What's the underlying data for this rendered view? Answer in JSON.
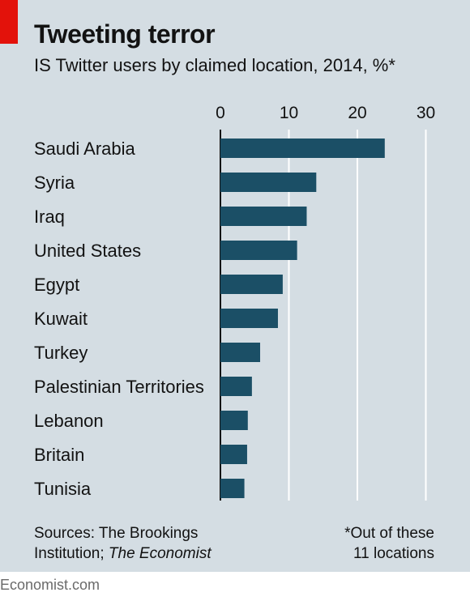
{
  "header": {
    "title": "Tweeting terror",
    "subtitle": "IS Twitter users by claimed location, 2014, %*"
  },
  "chart_data": {
    "type": "bar",
    "orientation": "horizontal",
    "title": "Tweeting terror",
    "subtitle": "IS Twitter users by claimed location, 2014, %*",
    "xlabel": "",
    "ylabel": "",
    "xlim": [
      0,
      30
    ],
    "ticks": [
      "0",
      "10",
      "20",
      "30"
    ],
    "grid": true,
    "categories": [
      "Saudi Arabia",
      "Syria",
      "Iraq",
      "United States",
      "Egypt",
      "Kuwait",
      "Turkey",
      "Palestinian Territories",
      "Lebanon",
      "Britain",
      "Tunisia"
    ],
    "values": [
      24,
      14,
      12.6,
      11.2,
      9.1,
      8.4,
      5.8,
      4.6,
      4.0,
      3.9,
      3.5
    ],
    "bar_color": "#1b4f66",
    "background_color": "#d4dde3",
    "accent_color": "#e3120b"
  },
  "footer": {
    "source_prefix": "Sources: The Brookings",
    "source_line2": "Institution; ",
    "source_italic": "The Economist",
    "footnote_line1": "*Out of these",
    "footnote_line2": "11 locations",
    "brand": "Economist.com"
  }
}
